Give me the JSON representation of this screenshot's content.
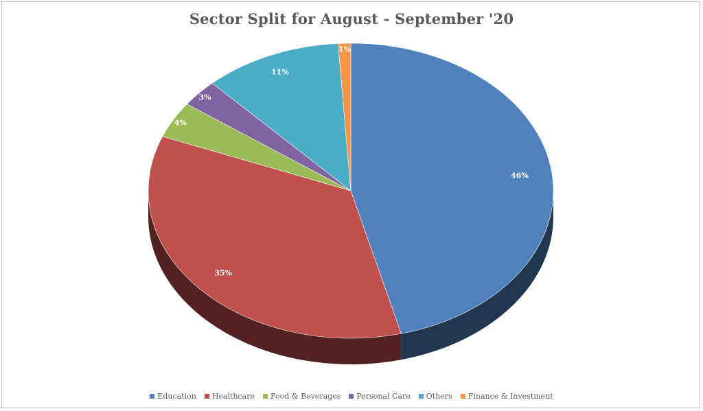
{
  "chart_data": {
    "type": "pie",
    "title": "Sector Split for August - September '20",
    "categories": [
      "Education",
      "Healthcare",
      "Food & Beverages",
      "Personal Care",
      "Others",
      "Finance & Investment"
    ],
    "values": [
      46,
      35,
      4,
      3,
      11,
      1
    ],
    "labels": [
      "46%",
      "35%",
      "4%",
      "3%",
      "11%",
      "1%"
    ],
    "colors": [
      "#4f81bd",
      "#c0504d",
      "#9bbb59",
      "#8064a2",
      "#4bacc6",
      "#f79646"
    ],
    "style": "3d",
    "legend_position": "bottom"
  }
}
